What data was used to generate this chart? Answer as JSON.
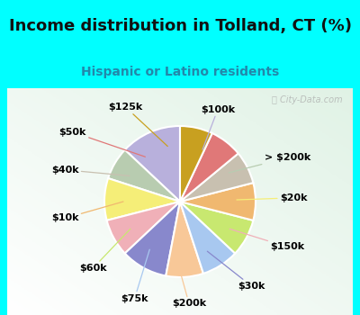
{
  "title": "Income distribution in Tolland, CT (%)",
  "subtitle": "Hispanic or Latino residents",
  "watermark": "ⓘ City-Data.com",
  "bg_cyan": "#00FFFF",
  "bg_chart_colors": [
    "#e8f8f0",
    "#d0ede0"
  ],
  "labels_clockwise": [
    "$100k",
    "> $200k",
    "$20k",
    "$150k",
    "$30k",
    "$200k",
    "$75k",
    "$60k",
    "$10k",
    "$40k",
    "$50k",
    "$125k"
  ],
  "values": [
    13,
    7,
    9,
    8,
    10,
    8,
    8,
    8,
    8,
    7,
    7,
    7
  ],
  "colors": [
    "#b8b0dc",
    "#b8ccb0",
    "#f5ee78",
    "#f0b0b8",
    "#8888cc",
    "#f8c898",
    "#a8c8f0",
    "#c8e870",
    "#f0b870",
    "#c8c0b0",
    "#e07878",
    "#c8a020"
  ],
  "label_positions": [
    [
      "$100k",
      0.5,
      1.22
    ],
    [
      "> $200k",
      1.42,
      0.58
    ],
    [
      "$20k",
      1.5,
      0.05
    ],
    [
      "$150k",
      1.42,
      -0.6
    ],
    [
      "$30k",
      0.95,
      -1.12
    ],
    [
      "$200k",
      0.12,
      -1.35
    ],
    [
      "$75k",
      -0.6,
      -1.28
    ],
    [
      "$60k",
      -1.15,
      -0.88
    ],
    [
      "$10k",
      -1.52,
      -0.22
    ],
    [
      "$40k",
      -1.52,
      0.42
    ],
    [
      "$50k",
      -1.42,
      0.92
    ],
    [
      "$125k",
      -0.72,
      1.25
    ]
  ],
  "startangle": 90,
  "title_fontsize": 13,
  "subtitle_fontsize": 10,
  "label_fontsize": 8,
  "title_color": "#111111",
  "subtitle_color": "#2288aa"
}
